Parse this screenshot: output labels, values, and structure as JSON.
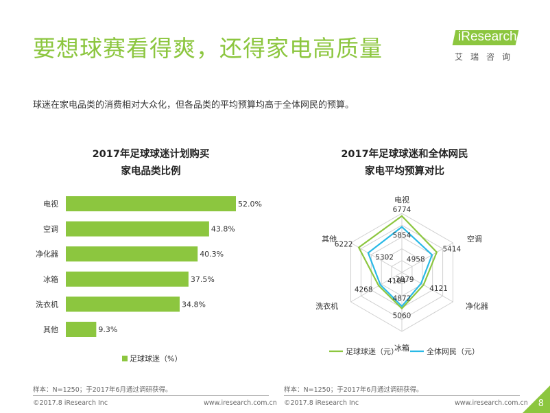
{
  "page": {
    "title": "要想球赛看得爽，还得家电高质量",
    "subtitle": "球迷在家电品类的消费相对大众化，但各品类的平均预算均高于全体网民的预算。",
    "logo": {
      "brand": "iResearch",
      "sub": "艾瑞咨询"
    },
    "page_number": "8",
    "footer_left": "©2017.8 iResearch Inc",
    "footer_right": "www.iresearch.com.cn",
    "accent_color": "#8cc63f",
    "accent_color_2": "#29b9e6"
  },
  "chart_data": [
    {
      "type": "bar",
      "orientation": "horizontal",
      "title_line1": "2017年足球球迷计划购买",
      "title_line2": "家电品类比例",
      "categories": [
        "电视",
        "空调",
        "净化器",
        "冰箱",
        "洗衣机",
        "其他"
      ],
      "values": [
        52.0,
        43.8,
        40.3,
        37.5,
        34.8,
        9.3
      ],
      "value_labels": [
        "52.0%",
        "43.8%",
        "40.3%",
        "37.5%",
        "34.8%",
        "9.3%"
      ],
      "series": [
        {
          "name": "足球球迷（%）",
          "color": "#8cc63f"
        }
      ],
      "legend_position": "bottom",
      "grid": false,
      "note": "样本：N=1250；于2017年6月通过调研获得。"
    },
    {
      "type": "radar",
      "title_line1": "2017年足球球迷和全体网民",
      "title_line2": "家电平均预算对比",
      "axes": [
        "电视",
        "空调",
        "净化器",
        "冰箱",
        "洗衣机",
        "其他"
      ],
      "series": [
        {
          "name": "足球球迷（元）",
          "values": [
            6774,
            5414,
            4121,
            5060,
            4268,
            6222
          ],
          "value_labels": [
            "6774",
            "5414",
            "4121",
            "5060",
            "4268",
            "6222"
          ],
          "color": "#8cc63f"
        },
        {
          "name": "全体网民（元）",
          "values": [
            5854,
            4958,
            3879,
            4872,
            4104,
            5302
          ],
          "value_labels": [
            "5854",
            "4958",
            "3879",
            "4872",
            "4104",
            "5302"
          ],
          "color": "#29b9e6"
        }
      ],
      "r_range": [
        2000,
        7000
      ],
      "legend_position": "bottom",
      "grid": true,
      "note": "样本：N=1250；于2017年6月通过调研获得。"
    }
  ]
}
